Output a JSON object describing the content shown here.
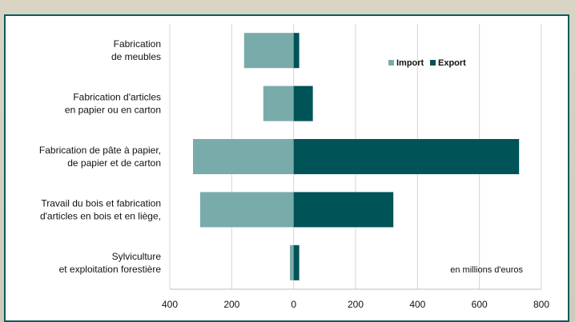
{
  "chart_data": {
    "type": "bar",
    "orientation": "horizontal",
    "title": "",
    "xlabel": "",
    "ylabel": "",
    "unit_note": "en millions d'euros",
    "categories": [
      [
        "Fabrication",
        "de meubles"
      ],
      [
        "Fabrication d'articles",
        "en papier ou en carton"
      ],
      [
        "Fabrication de pâte à papier,",
        "de papier et de carton"
      ],
      [
        "Travail du bois et fabrication",
        "d'articles en bois et en liège,"
      ],
      [
        "Sylviculture",
        "et exploitation forestière"
      ]
    ],
    "series": [
      {
        "name": "Import",
        "color": "#7aabab",
        "values": [
          -160,
          -98,
          -325,
          -302,
          -12
        ]
      },
      {
        "name": "Export",
        "color": "#005357",
        "values": [
          18,
          62,
          728,
          322,
          18
        ]
      }
    ],
    "xlim": [
      -400,
      800
    ],
    "xticks": [
      -400,
      -200,
      0,
      200,
      400,
      600,
      800
    ],
    "xtick_labels": [
      "400",
      "200",
      "0",
      "200",
      "400",
      "600",
      "800"
    ],
    "grid": true,
    "legend_position": "top-right"
  }
}
